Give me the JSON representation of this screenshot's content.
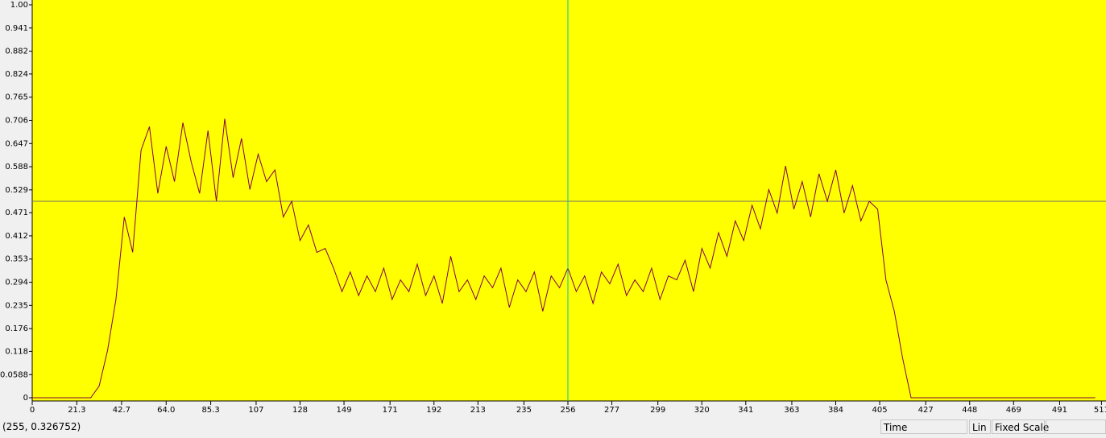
{
  "chart_data": {
    "type": "line",
    "x": [
      0,
      4,
      8,
      12,
      16,
      20,
      24,
      28,
      32,
      36,
      40,
      44,
      48,
      52,
      56,
      60,
      64,
      68,
      72,
      76,
      80,
      84,
      88,
      92,
      96,
      100,
      104,
      108,
      112,
      116,
      120,
      124,
      128,
      132,
      136,
      140,
      144,
      148,
      152,
      156,
      160,
      164,
      168,
      172,
      176,
      180,
      184,
      188,
      192,
      196,
      200,
      204,
      208,
      212,
      216,
      220,
      224,
      228,
      232,
      236,
      240,
      244,
      248,
      252,
      256,
      260,
      264,
      268,
      272,
      276,
      280,
      284,
      288,
      292,
      296,
      300,
      304,
      308,
      312,
      316,
      320,
      324,
      328,
      332,
      336,
      340,
      344,
      348,
      352,
      356,
      360,
      364,
      368,
      372,
      376,
      380,
      384,
      388,
      392,
      396,
      400,
      404,
      408,
      412,
      416,
      420,
      424,
      428,
      432,
      436,
      440,
      444,
      448,
      452,
      456,
      460,
      464,
      468,
      472,
      476,
      480,
      484,
      488,
      492,
      496,
      500,
      504,
      508
    ],
    "series": [
      {
        "color": "#800040",
        "values": [
          0,
          0,
          0,
          0,
          0,
          0,
          0,
          0,
          0.03,
          0.12,
          0.25,
          0.46,
          0.37,
          0.63,
          0.69,
          0.52,
          0.64,
          0.55,
          0.7,
          0.6,
          0.52,
          0.68,
          0.5,
          0.71,
          0.56,
          0.66,
          0.53,
          0.62,
          0.55,
          0.58,
          0.46,
          0.5,
          0.4,
          0.44,
          0.37,
          0.38,
          0.33,
          0.27,
          0.32,
          0.26,
          0.31,
          0.27,
          0.33,
          0.25,
          0.3,
          0.27,
          0.34,
          0.26,
          0.31,
          0.24,
          0.36,
          0.27,
          0.3,
          0.25,
          0.31,
          0.28,
          0.33,
          0.23,
          0.3,
          0.27,
          0.32,
          0.22,
          0.31,
          0.28,
          0.33,
          0.27,
          0.31,
          0.24,
          0.32,
          0.29,
          0.34,
          0.26,
          0.3,
          0.27,
          0.33,
          0.25,
          0.31,
          0.3,
          0.35,
          0.27,
          0.38,
          0.33,
          0.42,
          0.36,
          0.45,
          0.4,
          0.49,
          0.43,
          0.53,
          0.47,
          0.59,
          0.48,
          0.55,
          0.46,
          0.57,
          0.5,
          0.58,
          0.47,
          0.54,
          0.45,
          0.5,
          0.48,
          0.3,
          0.22,
          0.1,
          0,
          0,
          0,
          0,
          0,
          0,
          0,
          0,
          0,
          0,
          0,
          0,
          0,
          0,
          0,
          0,
          0,
          0,
          0,
          0,
          0,
          0,
          0
        ]
      }
    ],
    "xlim": [
      0,
      512
    ],
    "xticks": [
      0,
      21.3,
      42.7,
      {
        "value": 64,
        "label": "64.0"
      },
      85.3,
      107,
      128,
      149,
      171,
      192,
      213,
      235,
      256,
      277,
      299,
      320,
      341,
      363,
      384,
      405,
      427,
      448,
      469,
      491,
      511
    ],
    "ylim": [
      0,
      1
    ],
    "yticks": [
      0,
      {
        "value": 0.0588,
        "label": "0.0588"
      },
      0.118,
      0.176,
      0.235,
      0.294,
      0.353,
      0.412,
      0.471,
      0.529,
      0.588,
      0.647,
      0.706,
      0.765,
      0.824,
      0.882,
      0.941,
      {
        "value": 1,
        "label": "1.00"
      }
    ],
    "background": "#ffff00",
    "cursor_x": 256,
    "cursor_color": "#00c0c0",
    "hline_y": 0.5,
    "hline_color": "#707070"
  },
  "status_bar": {
    "position": "(255, 0.326752)",
    "mode": "Time",
    "scale_type": "Lin",
    "scale_mode": "Fixed Scale"
  }
}
